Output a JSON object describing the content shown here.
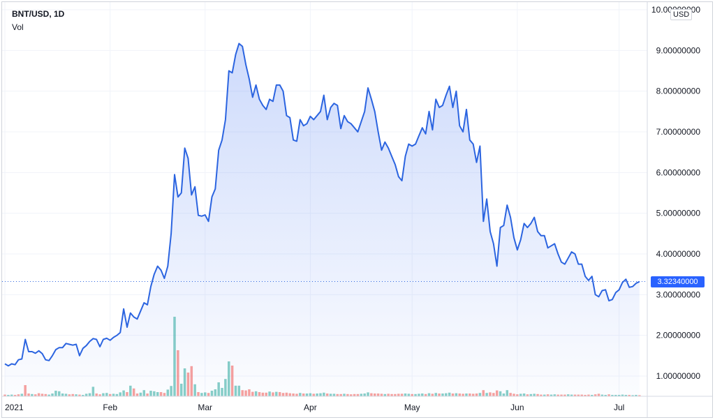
{
  "legend": {
    "symbol": "BNT/USD, 1D",
    "volume_label": "Vol"
  },
  "currency_button": "USD",
  "last_price": "3.32340000",
  "colors": {
    "line": "#2b64e0",
    "area": "#4f7df2",
    "vol_up": "#26a69a",
    "vol_down": "#ef5350",
    "grid": "#f0f3fa",
    "axis_text": "#131722"
  },
  "chart_data": {
    "type": "area",
    "title": "BNT/USD, 1D",
    "xlabel": "",
    "ylabel": "USD",
    "ylim": [
      0.3,
      10.2
    ],
    "y_ticks": [
      "10.00000000",
      "9.00000000",
      "8.00000000",
      "7.00000000",
      "6.00000000",
      "5.00000000",
      "4.00000000",
      "3.00000000",
      "2.00000000",
      "1.00000000"
    ],
    "x_ticks": [
      {
        "label": "2021",
        "day": 0
      },
      {
        "label": "Feb",
        "day": 31
      },
      {
        "label": "Mar",
        "day": 59
      },
      {
        "label": "Apr",
        "day": 90
      },
      {
        "label": "May",
        "day": 120
      },
      {
        "label": "Jun",
        "day": 151
      },
      {
        "label": "Jul",
        "day": 181
      }
    ],
    "price_series": [
      [
        0,
        1.3
      ],
      [
        1,
        1.25
      ],
      [
        2,
        1.3
      ],
      [
        3,
        1.28
      ],
      [
        4,
        1.4
      ],
      [
        5,
        1.42
      ],
      [
        6,
        1.9
      ],
      [
        7,
        1.6
      ],
      [
        8,
        1.6
      ],
      [
        9,
        1.56
      ],
      [
        10,
        1.62
      ],
      [
        11,
        1.55
      ],
      [
        12,
        1.4
      ],
      [
        13,
        1.38
      ],
      [
        14,
        1.5
      ],
      [
        15,
        1.65
      ],
      [
        16,
        1.7
      ],
      [
        17,
        1.7
      ],
      [
        18,
        1.8
      ],
      [
        19,
        1.78
      ],
      [
        20,
        1.76
      ],
      [
        21,
        1.78
      ],
      [
        22,
        1.5
      ],
      [
        23,
        1.68
      ],
      [
        24,
        1.75
      ],
      [
        25,
        1.85
      ],
      [
        26,
        1.92
      ],
      [
        27,
        1.9
      ],
      [
        28,
        1.72
      ],
      [
        29,
        1.9
      ],
      [
        30,
        1.93
      ],
      [
        31,
        1.88
      ],
      [
        32,
        1.95
      ],
      [
        33,
        2.0
      ],
      [
        34,
        2.07
      ],
      [
        35,
        2.65
      ],
      [
        36,
        2.2
      ],
      [
        37,
        2.55
      ],
      [
        38,
        2.45
      ],
      [
        39,
        2.4
      ],
      [
        40,
        2.6
      ],
      [
        41,
        2.8
      ],
      [
        42,
        2.75
      ],
      [
        43,
        3.2
      ],
      [
        44,
        3.5
      ],
      [
        45,
        3.7
      ],
      [
        46,
        3.6
      ],
      [
        47,
        3.4
      ],
      [
        48,
        3.7
      ],
      [
        49,
        4.5
      ],
      [
        50,
        5.95
      ],
      [
        51,
        5.4
      ],
      [
        52,
        5.5
      ],
      [
        53,
        6.6
      ],
      [
        54,
        6.35
      ],
      [
        55,
        5.45
      ],
      [
        56,
        5.65
      ],
      [
        57,
        4.95
      ],
      [
        58,
        4.93
      ],
      [
        59,
        4.96
      ],
      [
        60,
        4.8
      ],
      [
        61,
        5.4
      ],
      [
        62,
        5.6
      ],
      [
        63,
        6.55
      ],
      [
        64,
        6.8
      ],
      [
        65,
        7.3
      ],
      [
        66,
        8.5
      ],
      [
        67,
        8.45
      ],
      [
        68,
        8.9
      ],
      [
        69,
        9.17
      ],
      [
        70,
        9.1
      ],
      [
        71,
        8.65
      ],
      [
        72,
        8.3
      ],
      [
        73,
        7.85
      ],
      [
        74,
        8.15
      ],
      [
        75,
        7.8
      ],
      [
        76,
        7.65
      ],
      [
        77,
        7.55
      ],
      [
        78,
        7.8
      ],
      [
        79,
        7.75
      ],
      [
        80,
        8.15
      ],
      [
        81,
        8.15
      ],
      [
        82,
        8.0
      ],
      [
        83,
        7.4
      ],
      [
        84,
        7.35
      ],
      [
        85,
        6.8
      ],
      [
        86,
        6.77
      ],
      [
        87,
        7.3
      ],
      [
        88,
        7.15
      ],
      [
        89,
        7.2
      ],
      [
        90,
        7.38
      ],
      [
        91,
        7.3
      ],
      [
        92,
        7.4
      ],
      [
        93,
        7.5
      ],
      [
        94,
        7.9
      ],
      [
        95,
        7.3
      ],
      [
        96,
        7.6
      ],
      [
        97,
        7.7
      ],
      [
        98,
        7.65
      ],
      [
        99,
        7.08
      ],
      [
        100,
        7.4
      ],
      [
        101,
        7.25
      ],
      [
        102,
        7.2
      ],
      [
        103,
        7.1
      ],
      [
        104,
        7.0
      ],
      [
        105,
        7.25
      ],
      [
        106,
        7.5
      ],
      [
        107,
        8.08
      ],
      [
        108,
        7.8
      ],
      [
        109,
        7.5
      ],
      [
        110,
        7.0
      ],
      [
        111,
        6.55
      ],
      [
        112,
        6.75
      ],
      [
        113,
        6.6
      ],
      [
        114,
        6.4
      ],
      [
        115,
        6.2
      ],
      [
        116,
        5.9
      ],
      [
        117,
        5.8
      ],
      [
        118,
        6.4
      ],
      [
        119,
        6.7
      ],
      [
        120,
        6.65
      ],
      [
        121,
        6.7
      ],
      [
        122,
        6.9
      ],
      [
        123,
        7.1
      ],
      [
        124,
        6.95
      ],
      [
        125,
        7.5
      ],
      [
        126,
        7.05
      ],
      [
        127,
        7.8
      ],
      [
        128,
        7.6
      ],
      [
        129,
        7.65
      ],
      [
        130,
        7.9
      ],
      [
        131,
        8.12
      ],
      [
        132,
        7.6
      ],
      [
        133,
        8.0
      ],
      [
        134,
        7.15
      ],
      [
        135,
        7.0
      ],
      [
        136,
        7.55
      ],
      [
        137,
        6.8
      ],
      [
        138,
        6.7
      ],
      [
        139,
        6.25
      ],
      [
        140,
        6.65
      ],
      [
        141,
        4.8
      ],
      [
        142,
        5.35
      ],
      [
        143,
        4.55
      ],
      [
        144,
        4.25
      ],
      [
        145,
        3.7
      ],
      [
        146,
        4.65
      ],
      [
        147,
        4.7
      ],
      [
        148,
        5.2
      ],
      [
        149,
        4.9
      ],
      [
        150,
        4.4
      ],
      [
        151,
        4.1
      ],
      [
        152,
        4.35
      ],
      [
        153,
        4.75
      ],
      [
        154,
        4.65
      ],
      [
        155,
        4.75
      ],
      [
        156,
        4.9
      ],
      [
        157,
        4.55
      ],
      [
        158,
        4.45
      ],
      [
        159,
        4.45
      ],
      [
        160,
        4.15
      ],
      [
        161,
        4.2
      ],
      [
        162,
        4.25
      ],
      [
        163,
        4.0
      ],
      [
        164,
        3.8
      ],
      [
        165,
        3.75
      ],
      [
        166,
        3.9
      ],
      [
        167,
        4.05
      ],
      [
        168,
        4.0
      ],
      [
        169,
        3.75
      ],
      [
        170,
        3.75
      ],
      [
        171,
        3.45
      ],
      [
        172,
        3.35
      ],
      [
        173,
        3.45
      ],
      [
        174,
        3.0
      ],
      [
        175,
        2.95
      ],
      [
        176,
        3.1
      ],
      [
        177,
        3.12
      ],
      [
        178,
        2.85
      ],
      [
        179,
        2.88
      ],
      [
        180,
        3.05
      ],
      [
        181,
        3.12
      ],
      [
        182,
        3.3
      ],
      [
        183,
        3.38
      ],
      [
        184,
        3.18
      ],
      [
        185,
        3.2
      ],
      [
        186,
        3.28
      ],
      [
        187,
        3.32
      ]
    ],
    "volume_series": [
      [
        0,
        0.06,
        "down"
      ],
      [
        1,
        0.05,
        "up"
      ],
      [
        2,
        0.06,
        "up"
      ],
      [
        3,
        0.05,
        "down"
      ],
      [
        4,
        0.07,
        "down"
      ],
      [
        5,
        0.09,
        "up"
      ],
      [
        6,
        0.4,
        "down"
      ],
      [
        7,
        0.1,
        "down"
      ],
      [
        8,
        0.08,
        "up"
      ],
      [
        9,
        0.07,
        "down"
      ],
      [
        10,
        0.11,
        "down"
      ],
      [
        11,
        0.09,
        "down"
      ],
      [
        12,
        0.08,
        "down"
      ],
      [
        13,
        0.06,
        "up"
      ],
      [
        14,
        0.1,
        "up"
      ],
      [
        15,
        0.2,
        "up"
      ],
      [
        16,
        0.18,
        "up"
      ],
      [
        17,
        0.1,
        "up"
      ],
      [
        18,
        0.09,
        "up"
      ],
      [
        19,
        0.07,
        "down"
      ],
      [
        20,
        0.08,
        "down"
      ],
      [
        21,
        0.07,
        "up"
      ],
      [
        22,
        0.06,
        "down"
      ],
      [
        23,
        0.05,
        "up"
      ],
      [
        24,
        0.09,
        "up"
      ],
      [
        25,
        0.11,
        "up"
      ],
      [
        26,
        0.34,
        "up"
      ],
      [
        27,
        0.1,
        "down"
      ],
      [
        28,
        0.07,
        "down"
      ],
      [
        29,
        0.11,
        "up"
      ],
      [
        30,
        0.12,
        "up"
      ],
      [
        31,
        0.08,
        "down"
      ],
      [
        32,
        0.09,
        "up"
      ],
      [
        33,
        0.08,
        "up"
      ],
      [
        34,
        0.14,
        "up"
      ],
      [
        35,
        0.21,
        "up"
      ],
      [
        36,
        0.15,
        "down"
      ],
      [
        37,
        0.38,
        "up"
      ],
      [
        38,
        0.28,
        "down"
      ],
      [
        39,
        0.1,
        "down"
      ],
      [
        40,
        0.13,
        "up"
      ],
      [
        41,
        0.22,
        "up"
      ],
      [
        42,
        0.1,
        "down"
      ],
      [
        43,
        0.2,
        "up"
      ],
      [
        44,
        0.18,
        "up"
      ],
      [
        45,
        0.15,
        "up"
      ],
      [
        46,
        0.15,
        "down"
      ],
      [
        47,
        0.12,
        "down"
      ],
      [
        48,
        0.24,
        "up"
      ],
      [
        49,
        0.37,
        "up"
      ],
      [
        50,
        2.85,
        "up"
      ],
      [
        51,
        1.65,
        "down"
      ],
      [
        52,
        0.45,
        "up"
      ],
      [
        53,
        1.0,
        "up"
      ],
      [
        54,
        0.85,
        "down"
      ],
      [
        55,
        1.08,
        "down"
      ],
      [
        56,
        0.43,
        "up"
      ],
      [
        57,
        0.15,
        "down"
      ],
      [
        58,
        0.12,
        "up"
      ],
      [
        59,
        0.14,
        "up"
      ],
      [
        60,
        0.12,
        "down"
      ],
      [
        61,
        0.2,
        "up"
      ],
      [
        62,
        0.25,
        "up"
      ],
      [
        63,
        0.5,
        "up"
      ],
      [
        64,
        0.3,
        "up"
      ],
      [
        65,
        0.62,
        "up"
      ],
      [
        66,
        1.25,
        "up"
      ],
      [
        67,
        1.1,
        "down"
      ],
      [
        68,
        0.38,
        "up"
      ],
      [
        69,
        0.38,
        "up"
      ],
      [
        70,
        0.22,
        "down"
      ],
      [
        71,
        0.21,
        "down"
      ],
      [
        72,
        0.25,
        "down"
      ],
      [
        73,
        0.16,
        "down"
      ],
      [
        74,
        0.18,
        "up"
      ],
      [
        75,
        0.15,
        "down"
      ],
      [
        76,
        0.13,
        "down"
      ],
      [
        77,
        0.13,
        "down"
      ],
      [
        78,
        0.17,
        "up"
      ],
      [
        79,
        0.14,
        "down"
      ],
      [
        80,
        0.16,
        "up"
      ],
      [
        81,
        0.15,
        "down"
      ],
      [
        82,
        0.12,
        "down"
      ],
      [
        83,
        0.13,
        "down"
      ],
      [
        84,
        0.11,
        "down"
      ],
      [
        85,
        0.1,
        "down"
      ],
      [
        86,
        0.09,
        "down"
      ],
      [
        87,
        0.12,
        "up"
      ],
      [
        88,
        0.1,
        "down"
      ],
      [
        89,
        0.1,
        "up"
      ],
      [
        90,
        0.11,
        "up"
      ],
      [
        91,
        0.09,
        "down"
      ],
      [
        92,
        0.1,
        "up"
      ],
      [
        93,
        0.11,
        "up"
      ],
      [
        94,
        0.13,
        "up"
      ],
      [
        95,
        0.1,
        "down"
      ],
      [
        96,
        0.09,
        "up"
      ],
      [
        97,
        0.09,
        "up"
      ],
      [
        98,
        0.08,
        "down"
      ],
      [
        99,
        0.08,
        "down"
      ],
      [
        100,
        0.09,
        "up"
      ],
      [
        101,
        0.08,
        "down"
      ],
      [
        102,
        0.07,
        "down"
      ],
      [
        103,
        0.08,
        "down"
      ],
      [
        104,
        0.08,
        "down"
      ],
      [
        105,
        0.09,
        "up"
      ],
      [
        106,
        0.1,
        "up"
      ],
      [
        107,
        0.14,
        "up"
      ],
      [
        108,
        0.11,
        "down"
      ],
      [
        109,
        0.1,
        "down"
      ],
      [
        110,
        0.1,
        "down"
      ],
      [
        111,
        0.09,
        "down"
      ],
      [
        112,
        0.08,
        "up"
      ],
      [
        113,
        0.09,
        "down"
      ],
      [
        114,
        0.08,
        "down"
      ],
      [
        115,
        0.08,
        "down"
      ],
      [
        116,
        0.09,
        "down"
      ],
      [
        117,
        0.09,
        "down"
      ],
      [
        118,
        0.1,
        "up"
      ],
      [
        119,
        0.09,
        "up"
      ],
      [
        120,
        0.08,
        "down"
      ],
      [
        121,
        0.08,
        "up"
      ],
      [
        122,
        0.09,
        "up"
      ],
      [
        123,
        0.1,
        "up"
      ],
      [
        124,
        0.08,
        "down"
      ],
      [
        125,
        0.11,
        "up"
      ],
      [
        126,
        0.09,
        "down"
      ],
      [
        127,
        0.12,
        "up"
      ],
      [
        128,
        0.1,
        "down"
      ],
      [
        129,
        0.1,
        "up"
      ],
      [
        130,
        0.11,
        "up"
      ],
      [
        131,
        0.13,
        "up"
      ],
      [
        132,
        0.1,
        "down"
      ],
      [
        133,
        0.11,
        "up"
      ],
      [
        134,
        0.1,
        "down"
      ],
      [
        135,
        0.09,
        "down"
      ],
      [
        136,
        0.1,
        "up"
      ],
      [
        137,
        0.1,
        "down"
      ],
      [
        138,
        0.09,
        "down"
      ],
      [
        139,
        0.1,
        "down"
      ],
      [
        140,
        0.12,
        "up"
      ],
      [
        141,
        0.22,
        "down"
      ],
      [
        142,
        0.12,
        "up"
      ],
      [
        143,
        0.14,
        "down"
      ],
      [
        144,
        0.12,
        "down"
      ],
      [
        145,
        0.21,
        "down"
      ],
      [
        146,
        0.18,
        "up"
      ],
      [
        147,
        0.1,
        "up"
      ],
      [
        148,
        0.22,
        "up"
      ],
      [
        149,
        0.12,
        "down"
      ],
      [
        150,
        0.09,
        "down"
      ],
      [
        151,
        0.07,
        "down"
      ],
      [
        152,
        0.09,
        "up"
      ],
      [
        153,
        0.1,
        "up"
      ],
      [
        154,
        0.07,
        "down"
      ],
      [
        155,
        0.08,
        "up"
      ],
      [
        156,
        0.09,
        "up"
      ],
      [
        157,
        0.08,
        "down"
      ],
      [
        158,
        0.06,
        "down"
      ],
      [
        159,
        0.06,
        "up"
      ],
      [
        160,
        0.07,
        "down"
      ],
      [
        161,
        0.06,
        "up"
      ],
      [
        162,
        0.07,
        "up"
      ],
      [
        163,
        0.06,
        "down"
      ],
      [
        164,
        0.06,
        "down"
      ],
      [
        165,
        0.06,
        "down"
      ],
      [
        166,
        0.07,
        "up"
      ],
      [
        167,
        0.06,
        "up"
      ],
      [
        168,
        0.06,
        "down"
      ],
      [
        169,
        0.06,
        "down"
      ],
      [
        170,
        0.06,
        "down"
      ],
      [
        171,
        0.05,
        "down"
      ],
      [
        172,
        0.06,
        "down"
      ],
      [
        173,
        0.05,
        "up"
      ],
      [
        174,
        0.07,
        "down"
      ],
      [
        175,
        0.09,
        "down"
      ],
      [
        176,
        0.06,
        "up"
      ],
      [
        177,
        0.05,
        "up"
      ],
      [
        178,
        0.07,
        "down"
      ],
      [
        179,
        0.05,
        "up"
      ],
      [
        180,
        0.05,
        "up"
      ],
      [
        181,
        0.05,
        "up"
      ],
      [
        182,
        0.06,
        "up"
      ],
      [
        183,
        0.05,
        "up"
      ],
      [
        184,
        0.05,
        "down"
      ],
      [
        185,
        0.04,
        "up"
      ],
      [
        186,
        0.05,
        "up"
      ],
      [
        187,
        0.04,
        "down"
      ]
    ]
  }
}
